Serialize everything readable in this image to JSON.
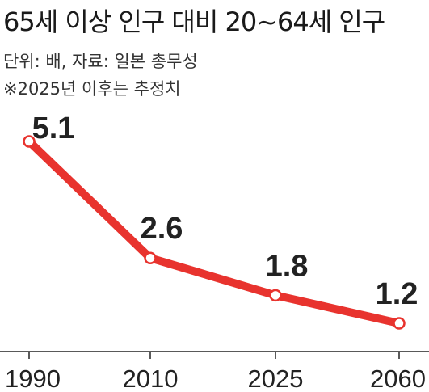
{
  "header": {
    "title": "65세 이상 인구 대비 20~64세 인구",
    "unit_source": "단위: 배, 자료: 일본 총무성",
    "note": "※2025년 이후는 추정치"
  },
  "chart_data": {
    "type": "line",
    "title": "65세 이상 인구 대비 20~64세 인구",
    "xlabel": "",
    "ylabel": "",
    "x": [
      "1990",
      "2010",
      "2025",
      "2060"
    ],
    "series": [
      {
        "values": [
          5.1,
          2.6,
          1.8,
          1.2
        ]
      }
    ],
    "value_labels": [
      "5.1",
      "2.6",
      "1.8",
      "1.2"
    ],
    "grid": false,
    "line_color": "#e8332e",
    "marker_fill": "#ffffff",
    "axis_color": "#222222"
  }
}
